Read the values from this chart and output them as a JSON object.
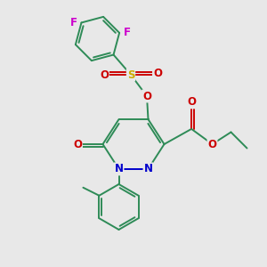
{
  "background_color": "#e8e8e8",
  "fig_size": [
    3.0,
    3.0
  ],
  "dpi": 100,
  "atom_colors": {
    "C": "#2e8b57",
    "N": "#0000cc",
    "O": "#cc0000",
    "S": "#ccaa00",
    "F": "#cc00cc"
  },
  "bond_color": "#2e8b57",
  "bond_width": 1.4,
  "font_size_atom": 8.5
}
